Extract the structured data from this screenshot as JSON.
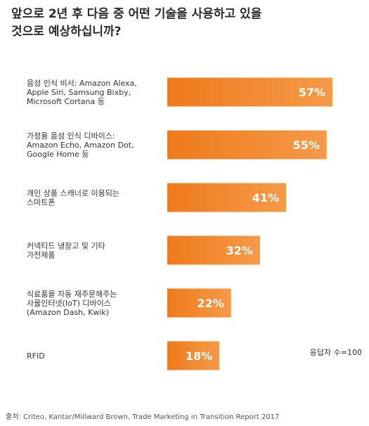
{
  "title_lines": [
    "앞으로 2년 후 다음 중 어떤 기술을 사용하고 있을",
    "것으로 예상하십니까?"
  ],
  "note": "응답자 수=100",
  "source": "출처: Criteo, Kantar/Millward Brown, Trade Marketing in Transition Report 2017",
  "colors": {
    "bar_start": "#ef7a1c",
    "bar_end": "#f59a48",
    "label": "#ffffff"
  },
  "chart_data": {
    "type": "bar",
    "orientation": "horizontal",
    "categories": [
      [
        "음성 인식 비서: Amazon Alexa,",
        "Apple Siri, Samsung Bixby,",
        "Microsoft Cortana 등"
      ],
      [
        "가정용 음성 인식 디바이스:",
        "Amazon Echo, Amazon Dot,",
        "Google Home 등"
      ],
      [
        "개인 상품 스캐너로 이용되는",
        "스마트폰"
      ],
      [
        "커넥티드 냉장고 및 기타",
        "가전제품"
      ],
      [
        "식료품을 자동 재주문해주는",
        "사물인터넷(IoT) 디바이스",
        "(Amazon Dash, Kwik)"
      ],
      [
        "RFID"
      ]
    ],
    "values": [
      57,
      55,
      41,
      32,
      22,
      18
    ],
    "value_labels": [
      "57%",
      "55%",
      "41%",
      "32%",
      "22%",
      "18%"
    ],
    "unit": "%",
    "grid": false,
    "legend": "none"
  }
}
